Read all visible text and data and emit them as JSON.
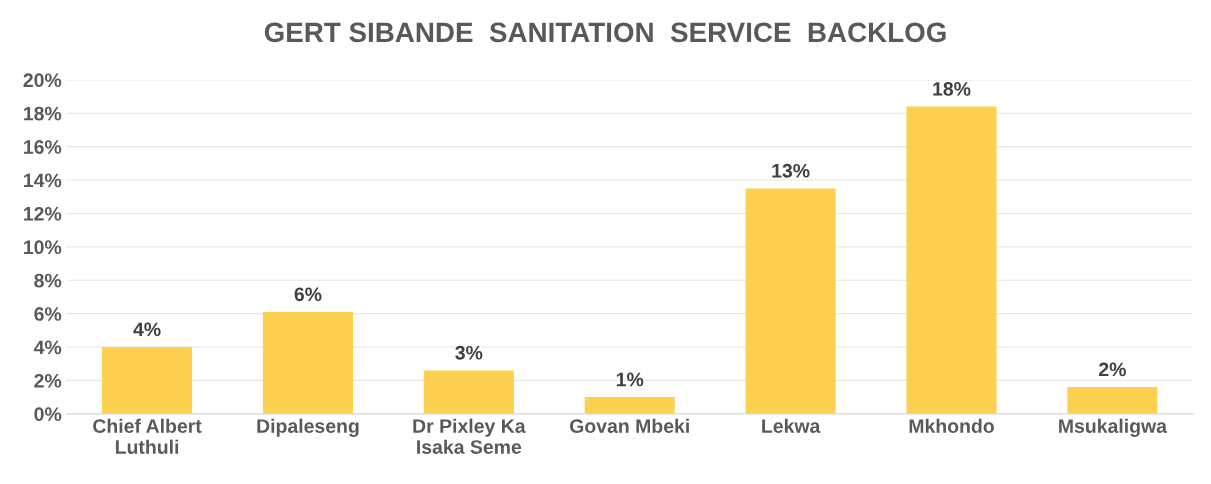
{
  "chart_data": {
    "type": "bar",
    "title": "GERT SIBANDE  SANITATION  SERVICE  BACKLOG",
    "categories": [
      "Chief Albert\nLuthuli",
      "Dipaleseng",
      "Dr Pixley Ka\nIsaka Seme",
      "Govan Mbeki",
      "Lekwa",
      "Mkhondo",
      "Msukaligwa"
    ],
    "values": [
      4.0,
      6.1,
      2.6,
      1.0,
      13.5,
      18.4,
      1.6
    ],
    "value_labels": [
      "4%",
      "6%",
      "3%",
      "1%",
      "13%",
      "18%",
      "2%"
    ],
    "color": "#fdd04f",
    "ylim": [
      0,
      20
    ],
    "yticks": [
      {
        "value": 0,
        "label": "0%"
      },
      {
        "value": 2,
        "label": "2%"
      },
      {
        "value": 4,
        "label": "4%"
      },
      {
        "value": 6,
        "label": "6%"
      },
      {
        "value": 8,
        "label": "8%"
      },
      {
        "value": 10,
        "label": "10%"
      },
      {
        "value": 12,
        "label": "12%"
      },
      {
        "value": 14,
        "label": "14%"
      },
      {
        "value": 16,
        "label": "16%"
      },
      {
        "value": 18,
        "label": "18%"
      },
      {
        "value": 20,
        "label": "20%"
      }
    ],
    "grid": "y"
  }
}
